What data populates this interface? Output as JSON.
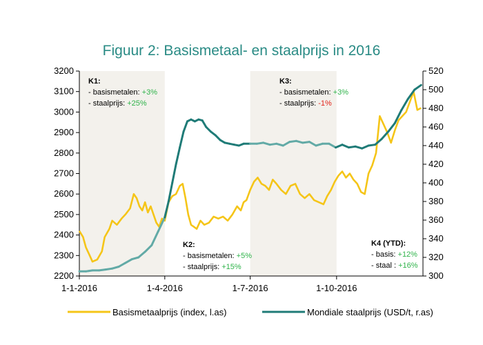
{
  "chart_data": {
    "type": "line",
    "title": "Figuur 2: Basismetaal- en staalprijs in 2016",
    "x_labels": [
      "1-1-2016",
      "1-4-2016",
      "1-7-2016",
      "1-10-2016"
    ],
    "y_left": {
      "min": 2200,
      "max": 3200,
      "ticks": [
        "2200",
        "2300",
        "2400",
        "2500",
        "2600",
        "2700",
        "2800",
        "2900",
        "3000",
        "3100",
        "3200"
      ]
    },
    "y_right": {
      "min": 300,
      "max": 520,
      "ticks": [
        "300",
        "320",
        "340",
        "360",
        "380",
        "400",
        "420",
        "440",
        "460",
        "480",
        "500",
        "520"
      ]
    },
    "colors": {
      "basis": "#f5c518",
      "staal_dark": "#1f7b77",
      "staal_light": "#62aaa6",
      "shade": "#f3f1ec",
      "up": "#2fb34a",
      "down": "#e2231a"
    },
    "series": [
      {
        "name": "Basismetaalprijs (index, l.as)",
        "axis": "left",
        "x": [
          "2016-01-01",
          "2016-01-05",
          "2016-01-08",
          "2016-01-12",
          "2016-01-15",
          "2016-01-20",
          "2016-01-25",
          "2016-01-28",
          "2016-02-02",
          "2016-02-05",
          "2016-02-10",
          "2016-02-15",
          "2016-02-19",
          "2016-02-24",
          "2016-02-28",
          "2016-03-02",
          "2016-03-05",
          "2016-03-08",
          "2016-03-11",
          "2016-03-14",
          "2016-03-17",
          "2016-03-20",
          "2016-03-23",
          "2016-03-26",
          "2016-03-29",
          "2016-04-01",
          "2016-04-05",
          "2016-04-09",
          "2016-04-13",
          "2016-04-17",
          "2016-04-20",
          "2016-04-23",
          "2016-04-26",
          "2016-04-29",
          "2016-05-02",
          "2016-05-05",
          "2016-05-09",
          "2016-05-13",
          "2016-05-18",
          "2016-05-23",
          "2016-05-28",
          "2016-06-02",
          "2016-06-07",
          "2016-06-12",
          "2016-06-17",
          "2016-06-21",
          "2016-06-24",
          "2016-06-27",
          "2016-07-01",
          "2016-07-05",
          "2016-07-09",
          "2016-07-13",
          "2016-07-17",
          "2016-07-21",
          "2016-07-25",
          "2016-07-29",
          "2016-08-03",
          "2016-08-08",
          "2016-08-13",
          "2016-08-18",
          "2016-08-23",
          "2016-08-28",
          "2016-09-02",
          "2016-09-07",
          "2016-09-12",
          "2016-09-17",
          "2016-09-21",
          "2016-09-25",
          "2016-09-29",
          "2016-10-03",
          "2016-10-07",
          "2016-10-11",
          "2016-10-15",
          "2016-10-19",
          "2016-10-23",
          "2016-10-27",
          "2016-10-31",
          "2016-11-04",
          "2016-11-08",
          "2016-11-12",
          "2016-11-16",
          "2016-11-20",
          "2016-11-24",
          "2016-11-28",
          "2016-12-02",
          "2016-12-06",
          "2016-12-10",
          "2016-12-14",
          "2016-12-18",
          "2016-12-22",
          "2016-12-26",
          "2016-12-30"
        ],
        "values": [
          2420,
          2390,
          2340,
          2300,
          2270,
          2280,
          2320,
          2390,
          2430,
          2470,
          2450,
          2480,
          2500,
          2530,
          2600,
          2580,
          2540,
          2520,
          2560,
          2510,
          2540,
          2500,
          2460,
          2440,
          2480,
          2470,
          2560,
          2590,
          2600,
          2640,
          2650,
          2580,
          2500,
          2450,
          2440,
          2430,
          2470,
          2450,
          2460,
          2490,
          2480,
          2490,
          2470,
          2500,
          2540,
          2520,
          2560,
          2570,
          2620,
          2660,
          2680,
          2650,
          2640,
          2620,
          2670,
          2650,
          2620,
          2600,
          2640,
          2650,
          2600,
          2580,
          2600,
          2570,
          2560,
          2550,
          2590,
          2620,
          2660,
          2690,
          2710,
          2680,
          2700,
          2670,
          2650,
          2610,
          2600,
          2700,
          2740,
          2800,
          2980,
          2940,
          2900,
          2850,
          2910,
          2960,
          2980,
          3000,
          3050,
          3100,
          3010,
          3020
        ]
      },
      {
        "name": "Mondiale staalprijs (USD/t, r.as)",
        "axis": "right",
        "x": [
          "2016-01-01",
          "2016-01-08",
          "2016-01-15",
          "2016-01-22",
          "2016-01-29",
          "2016-02-05",
          "2016-02-12",
          "2016-02-19",
          "2016-02-26",
          "2016-03-04",
          "2016-03-11",
          "2016-03-18",
          "2016-03-25",
          "2016-04-01",
          "2016-04-05",
          "2016-04-09",
          "2016-04-13",
          "2016-04-17",
          "2016-04-21",
          "2016-04-25",
          "2016-04-29",
          "2016-05-03",
          "2016-05-07",
          "2016-05-11",
          "2016-05-15",
          "2016-05-20",
          "2016-05-25",
          "2016-05-30",
          "2016-06-04",
          "2016-06-09",
          "2016-06-14",
          "2016-06-19",
          "2016-06-24",
          "2016-07-01",
          "2016-07-08",
          "2016-07-15",
          "2016-07-22",
          "2016-07-29",
          "2016-08-05",
          "2016-08-12",
          "2016-08-19",
          "2016-08-26",
          "2016-09-02",
          "2016-09-09",
          "2016-09-16",
          "2016-09-23",
          "2016-09-30",
          "2016-10-07",
          "2016-10-14",
          "2016-10-21",
          "2016-10-28",
          "2016-11-04",
          "2016-11-11",
          "2016-11-18",
          "2016-11-25",
          "2016-12-02",
          "2016-12-09",
          "2016-12-16",
          "2016-12-23",
          "2016-12-30"
        ],
        "values": [
          305,
          305,
          306,
          306,
          307,
          308,
          310,
          314,
          318,
          320,
          326,
          333,
          348,
          363,
          380,
          400,
          420,
          438,
          455,
          466,
          468,
          466,
          468,
          467,
          460,
          455,
          451,
          446,
          443,
          442,
          441,
          440,
          442,
          442,
          442,
          443,
          441,
          442,
          440,
          444,
          445,
          443,
          444,
          440,
          442,
          442,
          438,
          441,
          438,
          439,
          437,
          440,
          441,
          447,
          455,
          464,
          478,
          490,
          500,
          505
        ]
      }
    ],
    "quarters": [
      {
        "head": "K1:",
        "lines": [
          {
            "label": "- basismetalen:",
            "value": "+3%",
            "dir": "up"
          },
          {
            "label": "- staalprijs:",
            "value": "+25%",
            "dir": "up"
          }
        ]
      },
      {
        "head": "K2:",
        "lines": [
          {
            "label": "- basismetalen:",
            "value": "+5%",
            "dir": "up"
          },
          {
            "label": "- staalprijs:",
            "value": "+15%",
            "dir": "up"
          }
        ]
      },
      {
        "head": "K3:",
        "lines": [
          {
            "label": "- basismetalen:",
            "value": "+3%",
            "dir": "up"
          },
          {
            "label": "- staalprijs:",
            "value": "-1%",
            "dir": "down"
          }
        ]
      },
      {
        "head": "K4 (YTD):",
        "lines": [
          {
            "label": "- basis:",
            "value": "+12%",
            "dir": "up"
          },
          {
            "label": "- staal :",
            "value": "+16%",
            "dir": "up"
          }
        ]
      }
    ],
    "legend_placement": "bottom",
    "grid": false
  }
}
